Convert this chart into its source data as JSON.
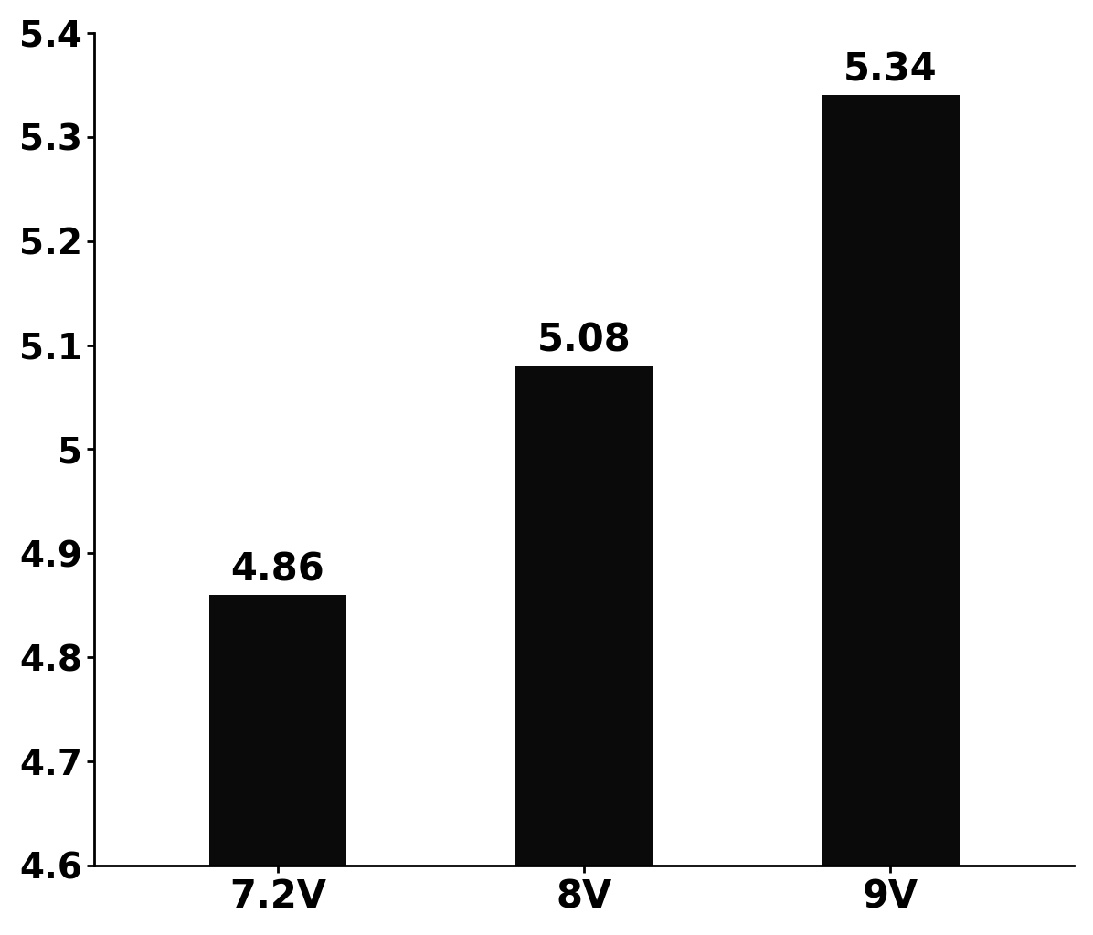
{
  "categories": [
    "7.2V",
    "8V",
    "9V"
  ],
  "values": [
    4.86,
    5.08,
    5.34
  ],
  "bar_color": "#0a0a0a",
  "bar_labels": [
    "4.86",
    "5.08",
    "5.34"
  ],
  "ylim": [
    4.6,
    5.4
  ],
  "yticks": [
    4.6,
    4.7,
    4.8,
    4.9,
    5.0,
    5.1,
    5.2,
    5.3,
    5.4
  ],
  "ytick_labels": [
    "4.6",
    "4.7",
    "4.8",
    "4.9",
    "5",
    "5.1",
    "5.2",
    "5.3",
    "5.4"
  ],
  "background_color": "#ffffff",
  "tick_fontsize": 28,
  "label_fontsize": 30,
  "bar_label_fontsize": 30,
  "bar_width": 0.45
}
